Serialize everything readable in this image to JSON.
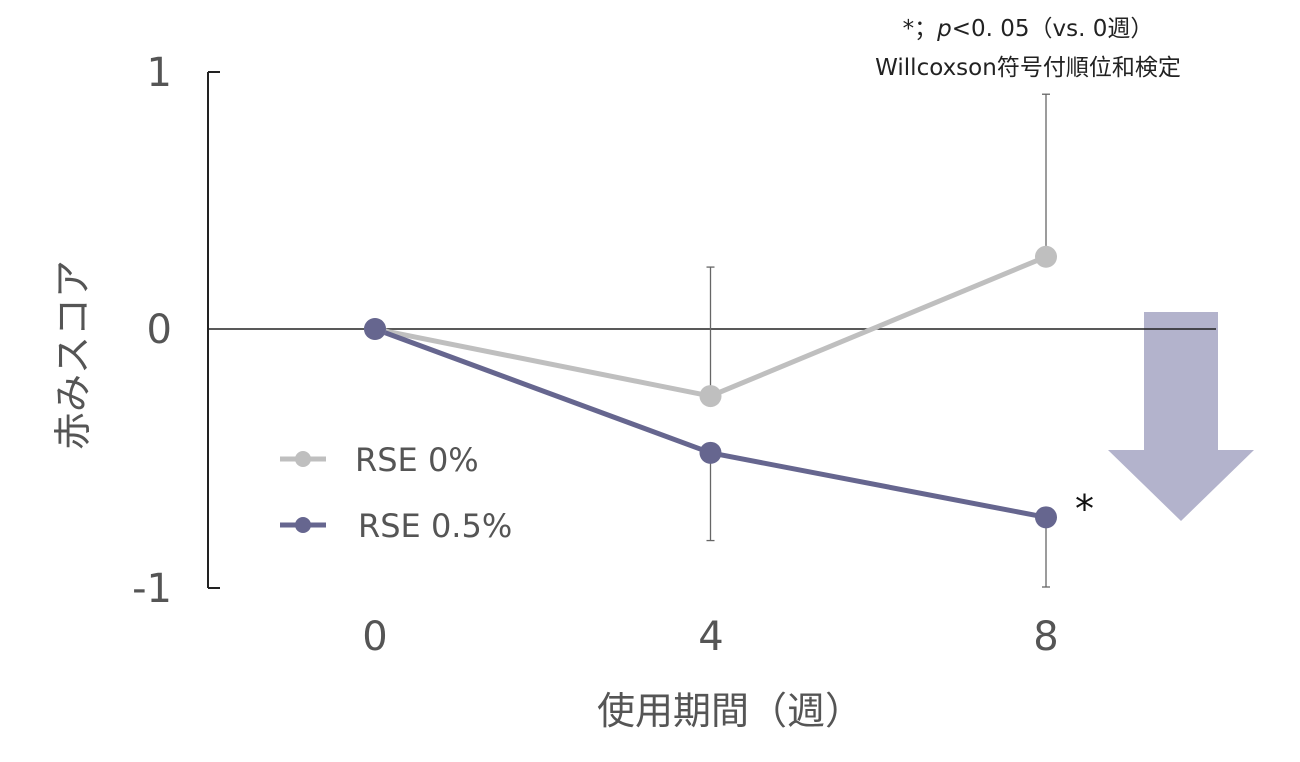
{
  "chart_data": {
    "type": "line",
    "xlabel": "使用期間（週）",
    "ylabel": "赤みスコア",
    "x": [
      0,
      4,
      8
    ],
    "x_tick_labels": [
      "0",
      "4",
      "8"
    ],
    "y_ticks": [
      1,
      0,
      -1
    ],
    "y_tick_labels": [
      "1",
      "0",
      "-1"
    ],
    "ylim": [
      -1,
      1
    ],
    "legend_position": "lower-left",
    "grid": false,
    "series": [
      {
        "name": "RSE 0%",
        "color": "#bfbfbf",
        "values": [
          0,
          -0.26,
          0.28
        ],
        "error_bar_upper": [
          null,
          0.24,
          0.91
        ]
      },
      {
        "name": "RSE 0.5%",
        "color": "#66668f",
        "values": [
          0,
          -0.48,
          -0.73
        ],
        "error_bar_lower": [
          null,
          -0.82,
          -1.0
        ]
      }
    ],
    "significance_marker": {
      "text": "*",
      "series": "RSE 0.5%",
      "x": 8
    },
    "annotation": {
      "line1_prefix": "*；",
      "line1_p": "p",
      "line1_rest": "<0. 05（vs. 0週）",
      "line2": "Willcoxson符号付順位和検定"
    },
    "arrow": {
      "direction": "down",
      "color": "#b3b3cc",
      "meaning": "improvement"
    }
  }
}
